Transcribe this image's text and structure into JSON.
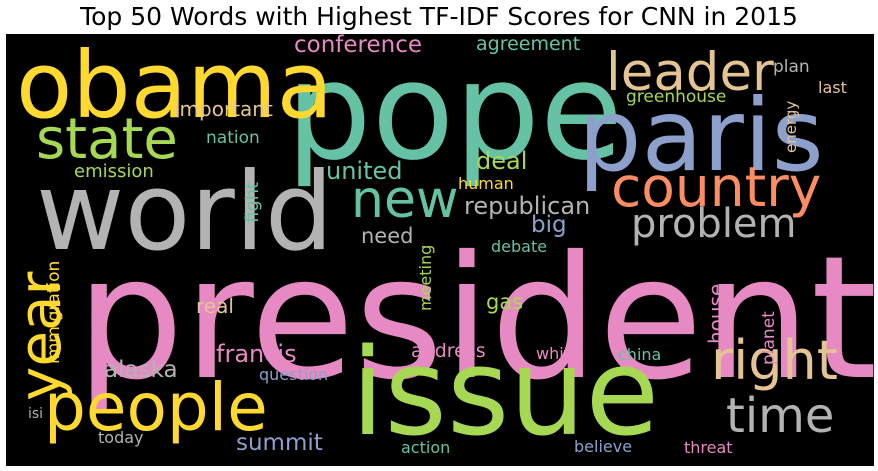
{
  "chart_data": {
    "type": "wordcloud",
    "title": "Top 50 Words with Highest TF-IDF Scores for CNN in 2015",
    "words": [
      {
        "text": "president",
        "color": "#e78ac3"
      },
      {
        "text": "pope",
        "color": "#66c2a5"
      },
      {
        "text": "issue",
        "color": "#a6d854"
      },
      {
        "text": "world",
        "color": "#b3b3b3"
      },
      {
        "text": "paris",
        "color": "#8da0cb"
      },
      {
        "text": "obama",
        "color": "#ffd92f"
      },
      {
        "text": "people",
        "color": "#ffd92f"
      },
      {
        "text": "country",
        "color": "#fc8d62"
      },
      {
        "text": "state",
        "color": "#a6d854"
      },
      {
        "text": "leader",
        "color": "#e5c494"
      },
      {
        "text": "right",
        "color": "#e5c494"
      },
      {
        "text": "new",
        "color": "#66c2a5"
      },
      {
        "text": "year",
        "color": "#ffd92f"
      },
      {
        "text": "time",
        "color": "#b3b3b3"
      },
      {
        "text": "problem",
        "color": "#b3b3b3"
      },
      {
        "text": "united",
        "color": "#66c2a5"
      },
      {
        "text": "francis",
        "color": "#e78ac3"
      },
      {
        "text": "alaska",
        "color": "#b3b3b3"
      },
      {
        "text": "summit",
        "color": "#8da0cb"
      },
      {
        "text": "conference",
        "color": "#e78ac3"
      },
      {
        "text": "republican",
        "color": "#b3b3b3"
      },
      {
        "text": "deal",
        "color": "#a6d854"
      },
      {
        "text": "need",
        "color": "#b3b3b3"
      },
      {
        "text": "important",
        "color": "#e5c494"
      },
      {
        "text": "big",
        "color": "#8da0cb"
      },
      {
        "text": "address",
        "color": "#e78ac3"
      },
      {
        "text": "agreement",
        "color": "#66c2a5"
      },
      {
        "text": "emission",
        "color": "#a6d854"
      },
      {
        "text": "immigration",
        "color": "#ffd92f"
      },
      {
        "text": "real",
        "color": "#e5c494"
      },
      {
        "text": "gas",
        "color": "#a6d854"
      },
      {
        "text": "house",
        "color": "#e78ac3"
      },
      {
        "text": "planet",
        "color": "#e78ac3"
      },
      {
        "text": "greenhouse",
        "color": "#a6d854"
      },
      {
        "text": "plan",
        "color": "#b3b3b3"
      },
      {
        "text": "last",
        "color": "#e5c494"
      },
      {
        "text": "energy",
        "color": "#e5c494"
      },
      {
        "text": "nation",
        "color": "#66c2a5"
      },
      {
        "text": "fight",
        "color": "#66c2a5"
      },
      {
        "text": "human",
        "color": "#ffd92f"
      },
      {
        "text": "debate",
        "color": "#66c2a5"
      },
      {
        "text": "meeting",
        "color": "#a6d854"
      },
      {
        "text": "white",
        "color": "#e78ac3"
      },
      {
        "text": "china",
        "color": "#66c2a5"
      },
      {
        "text": "question",
        "color": "#8da0cb"
      },
      {
        "text": "today",
        "color": "#b3b3b3"
      },
      {
        "text": "action",
        "color": "#66c2a5"
      },
      {
        "text": "believe",
        "color": "#8da0cb"
      },
      {
        "text": "threat",
        "color": "#e78ac3"
      },
      {
        "text": "isi",
        "color": "#b3b3b3"
      }
    ]
  }
}
